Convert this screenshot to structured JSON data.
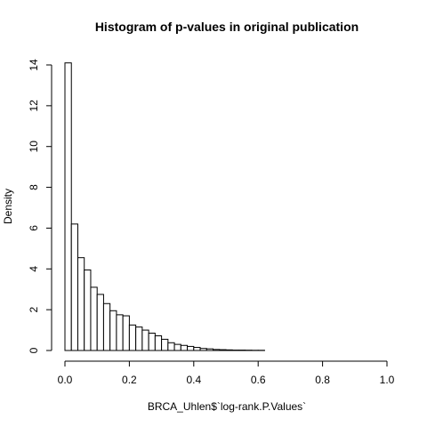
{
  "chart_data": {
    "type": "bar",
    "subtype": "histogram",
    "title": "Histogram of p-values in original publication",
    "xlabel": "BRCA_Uhlen$`log-rank.P.Values`",
    "ylabel": "Density",
    "xlim": [
      0,
      1
    ],
    "ylim": [
      0,
      14
    ],
    "xticks": [
      "0.0",
      "0.2",
      "0.4",
      "0.6",
      "0.8",
      "1.0"
    ],
    "yticks": [
      "0",
      "2",
      "4",
      "6",
      "8",
      "10",
      "12",
      "14"
    ],
    "bin_width": 0.02,
    "bin_starts": [
      0.0,
      0.02,
      0.04,
      0.06,
      0.08,
      0.1,
      0.12,
      0.14,
      0.16,
      0.18,
      0.2,
      0.22,
      0.24,
      0.26,
      0.28,
      0.3,
      0.32,
      0.34,
      0.36,
      0.38,
      0.4,
      0.42,
      0.44,
      0.46,
      0.48,
      0.5,
      0.52,
      0.54,
      0.56,
      0.58,
      0.6
    ],
    "values": [
      14.1,
      6.2,
      4.55,
      3.95,
      3.1,
      2.75,
      2.3,
      1.95,
      1.75,
      1.7,
      1.25,
      1.15,
      1.0,
      0.85,
      0.72,
      0.55,
      0.38,
      0.3,
      0.25,
      0.2,
      0.15,
      0.1,
      0.08,
      0.05,
      0.04,
      0.03,
      0.02,
      0.02,
      0.015,
      0.01,
      0.01
    ],
    "grid": false,
    "legend": "none",
    "colors": {
      "bar_fill": "#ffffff",
      "bar_stroke": "#000000"
    }
  }
}
